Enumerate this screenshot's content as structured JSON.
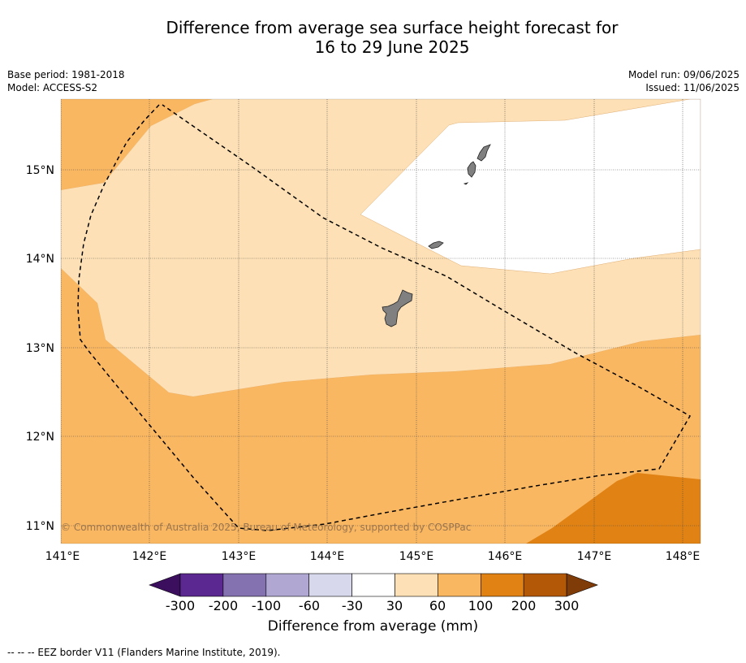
{
  "title_line1": "Difference from average sea surface height forecast for",
  "title_line2": "16 to 29 June 2025",
  "meta_left": [
    "Base period: 1981-2018",
    "Model: ACCESS-S2"
  ],
  "meta_right": [
    "Model run: 09/06/2025",
    "Issued: 11/06/2025"
  ],
  "copyright": "© Commonwealth of Australia 2025, Bureau of Meteorology, supported by COSPPac",
  "lat_labels": [
    "15°N",
    "14°N",
    "13°N",
    "12°N",
    "11°N"
  ],
  "lon_labels": [
    "141°E",
    "142°E",
    "143°E",
    "144°E",
    "145°E",
    "146°E",
    "147°E",
    "148°E"
  ],
  "colorbar": {
    "title": "Difference from average (mm)",
    "ticks": [
      "-300",
      "-200",
      "-100",
      "-60",
      "-30",
      "30",
      "60",
      "100",
      "200",
      "300"
    ],
    "colors": [
      "#3b0f5e",
      "#5a2890",
      "#8472b0",
      "#b0a8d2",
      "#d8d8ec",
      "#ffffff",
      "#fde0b5",
      "#fab762",
      "#e08214",
      "#b35806",
      "#7f3b08"
    ]
  },
  "colors": {
    "level_30_60": "#fde0b5",
    "level_60_100": "#fab762",
    "level_100_200": "#e08214",
    "land": "#808080"
  },
  "footnote": "--  --  -- EEZ border V11 (Flanders Marine Institute, 2019)."
}
